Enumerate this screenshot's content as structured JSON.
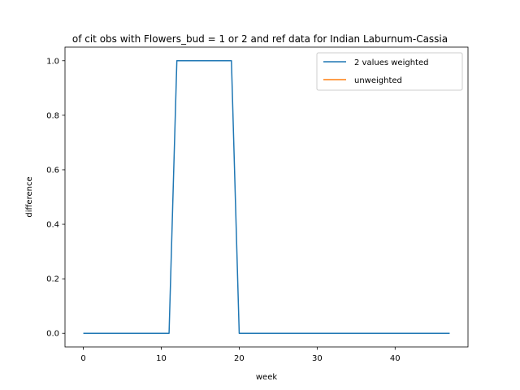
{
  "chart_data": {
    "type": "line",
    "title": "of cit obs with Flowers_bud = 1 or 2 and ref data for Indian Laburnum-Cassia",
    "xlabel": "week",
    "ylabel": "difference",
    "xlim": [
      -2.35,
      49.35
    ],
    "ylim": [
      -0.05,
      1.05
    ],
    "xticks": [
      0,
      10,
      20,
      30,
      40
    ],
    "yticks": [
      0.0,
      0.2,
      0.4,
      0.6,
      0.8,
      1.0
    ],
    "ytick_labels": [
      "0.0",
      "0.2",
      "0.4",
      "0.6",
      "0.8",
      "1.0"
    ],
    "grid": false,
    "legend_position": "top-right",
    "series": [
      {
        "name": "2 values weighted",
        "color": "#1f77b4",
        "x": [
          0,
          1,
          2,
          3,
          4,
          5,
          6,
          7,
          8,
          9,
          10,
          11,
          12,
          13,
          14,
          15,
          16,
          17,
          18,
          19,
          20,
          21,
          22,
          23,
          24,
          25,
          26,
          27,
          28,
          29,
          30,
          31,
          32,
          33,
          34,
          35,
          36,
          37,
          38,
          39,
          40,
          41,
          42,
          43,
          44,
          45,
          46,
          47
        ],
        "y": [
          0,
          0,
          0,
          0,
          0,
          0,
          0,
          0,
          0,
          0,
          0,
          0,
          1,
          1,
          1,
          1,
          1,
          1,
          1,
          1,
          0,
          0,
          0,
          0,
          0,
          0,
          0,
          0,
          0,
          0,
          0,
          0,
          0,
          0,
          0,
          0,
          0,
          0,
          0,
          0,
          0,
          0,
          0,
          0,
          0,
          0,
          0,
          0
        ]
      },
      {
        "name": "unweighted",
        "color": "#ff7f0e",
        "x": [],
        "y": []
      }
    ]
  }
}
